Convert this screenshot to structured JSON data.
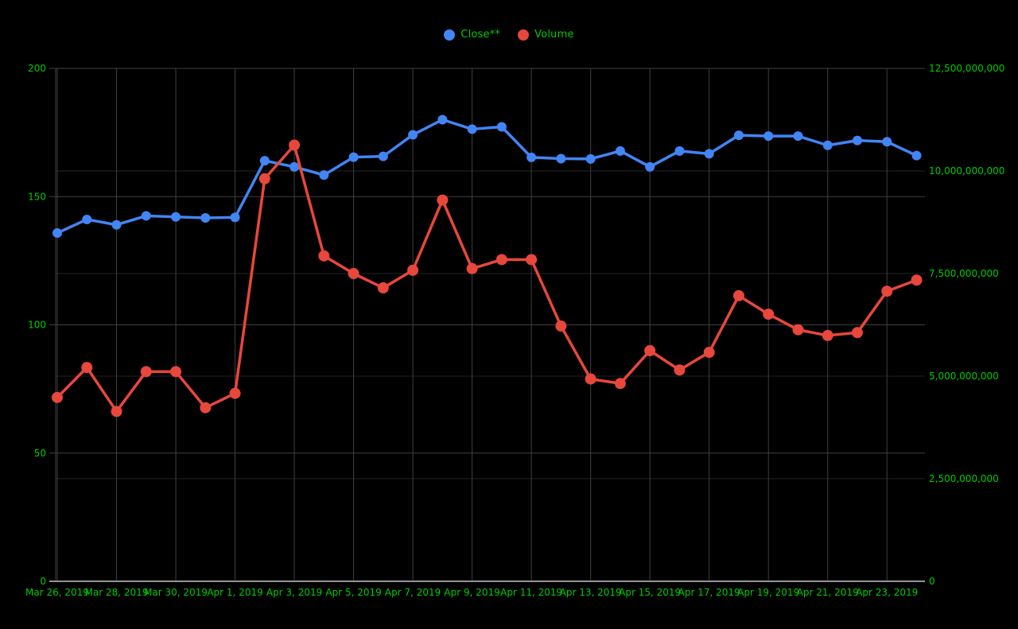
{
  "page": {
    "background": "#000000",
    "label_color": "#00cc00",
    "grid_color": "#3f3f3f",
    "faint_grid_color": "#242424",
    "baseline_color": "#959595"
  },
  "legend": {
    "items": [
      {
        "label": "Close**",
        "color": "#4285f4"
      },
      {
        "label": "Volume",
        "color": "#e8473b"
      }
    ]
  },
  "chart_data": {
    "type": "line",
    "title": "",
    "xlabel": "",
    "ylabel_left": "",
    "ylabel_right": "",
    "grid": true,
    "legend_position": "top",
    "x": [
      "Mar 26, 2019",
      "Mar 27, 2019",
      "Mar 28, 2019",
      "Mar 29, 2019",
      "Mar 30, 2019",
      "Mar 31, 2019",
      "Apr 1, 2019",
      "Apr 2, 2019",
      "Apr 3, 2019",
      "Apr 4, 2019",
      "Apr 5, 2019",
      "Apr 6, 2019",
      "Apr 7, 2019",
      "Apr 8, 2019",
      "Apr 9, 2019",
      "Apr 10, 2019",
      "Apr 11, 2019",
      "Apr 12, 2019",
      "Apr 13, 2019",
      "Apr 14, 2019",
      "Apr 15, 2019",
      "Apr 16, 2019",
      "Apr 17, 2019",
      "Apr 18, 2019",
      "Apr 19, 2019",
      "Apr 20, 2019",
      "Apr 21, 2019",
      "Apr 22, 2019",
      "Apr 23, 2019",
      "Apr 24, 2019"
    ],
    "x_tick_every": 2,
    "x_tick_labels": [
      "Mar 26, 2019",
      "Mar 28, 2019",
      "Mar 30, 2019",
      "Apr 1, 2019",
      "Apr 3, 2019",
      "Apr 5, 2019",
      "Apr 7, 2019",
      "Apr 9, 2019",
      "Apr 11, 2019",
      "Apr 13, 2019",
      "Apr 15, 2019",
      "Apr 17, 2019",
      "Apr 19, 2019",
      "Apr 21, 2019",
      "Apr 23, 2019"
    ],
    "series": [
      {
        "name": "Close**",
        "axis": "left",
        "color": "#4285f4",
        "point_radius": 6,
        "values": [
          135.8,
          141.1,
          139.0,
          142.5,
          142.1,
          141.7,
          141.9,
          164.0,
          161.6,
          158.4,
          165.4,
          165.7,
          174.1,
          180.0,
          176.3,
          177.2,
          165.3,
          164.8,
          164.7,
          167.8,
          161.6,
          167.8,
          166.7,
          173.9,
          173.6,
          173.6,
          170.0,
          171.9,
          171.4,
          166.0
        ]
      },
      {
        "name": "Volume",
        "axis": "right",
        "color": "#e8473b",
        "point_radius": 7,
        "values": [
          4480000000,
          5210000000,
          4140000000,
          5110000000,
          5110000000,
          4230000000,
          4580000000,
          9810000000,
          10630000000,
          7930000000,
          7500000000,
          7150000000,
          7580000000,
          9290000000,
          7620000000,
          7840000000,
          7840000000,
          6220000000,
          4930000000,
          4820000000,
          5620000000,
          5150000000,
          5580000000,
          6960000000,
          6510000000,
          6130000000,
          5990000000,
          6060000000,
          7070000000,
          7340000000
        ]
      }
    ],
    "left_axis": {
      "min": 0,
      "max": 200,
      "ticks": [
        0,
        50,
        100,
        150,
        200
      ]
    },
    "right_axis": {
      "min": 0,
      "max": 12500000000,
      "ticks": [
        0,
        2500000000,
        5000000000,
        7500000000,
        10000000000,
        12500000000
      ]
    }
  }
}
